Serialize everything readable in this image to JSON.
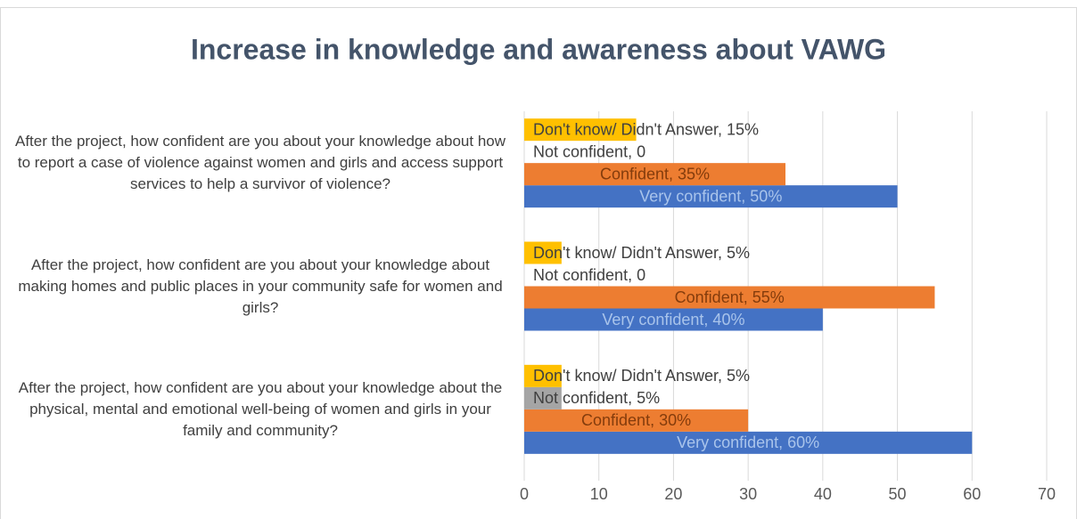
{
  "chart_data": {
    "type": "hbar",
    "title": "Increase in knowledge and awareness about VAWG",
    "categories": [
      "After the project, how confident are you about your knowledge about how to report a case of violence against women and girls and access support services to help a survivor of violence?",
      "After the project, how confident are you about your knowledge about making homes and public places in your community safe for women and girls?",
      "After the project, how confident are you about your knowledge about the physical, mental and emotional well-being of women and girls in your family and community?"
    ],
    "series": [
      {
        "name": "Very confident",
        "color": "#4472c4",
        "values": [
          50,
          40,
          60
        ],
        "value_labels": [
          "Very confident, 50%",
          "Very confident, 40%",
          "Very confident, 60%"
        ]
      },
      {
        "name": "Confident",
        "color": "#ed7d31",
        "values": [
          35,
          55,
          30
        ],
        "value_labels": [
          "Confident, 35%",
          "Confident, 55%",
          "Confident, 30%"
        ]
      },
      {
        "name": "Not confident",
        "color": "#a5a5a5",
        "values": [
          0,
          0,
          5
        ],
        "value_labels": [
          "Not confident, 0",
          "Not confident, 0",
          "Not confident, 5%"
        ]
      },
      {
        "name": "Don't know/ Didn't Answer",
        "color": "#ffc000",
        "values": [
          15,
          5,
          5
        ],
        "value_labels": [
          "Don't know/ Didn't Answer, 15%",
          "Don't know/ Didn't Answer, 5%",
          "Don't know/ Didn't Answer, 5%"
        ]
      }
    ],
    "xlim": [
      0,
      70
    ],
    "xticks": [
      0,
      10,
      20,
      30,
      40,
      50,
      60,
      70
    ],
    "grid": true
  }
}
